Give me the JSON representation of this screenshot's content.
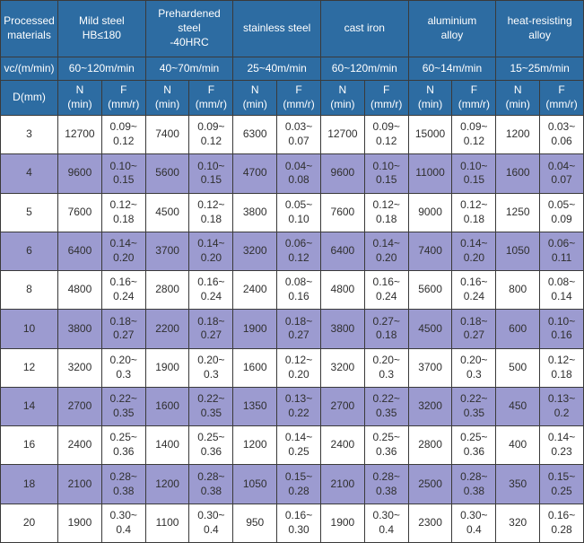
{
  "colors": {
    "header_bg": "#2d6ca2",
    "header_text": "#ffffff",
    "stripe_bg": "#9c9bd0",
    "row_bg": "#ffffff",
    "border": "#3a3a3a",
    "text": "#2f2f2f"
  },
  "table": {
    "corner_top": "Processed\nmaterials",
    "corner_speed": "vc/(m/min)",
    "corner_diameter": "D(mm)",
    "sub_n_label": "N",
    "sub_n_unit": "(min)",
    "sub_f_label": "F",
    "sub_f_unit": "(mm/r)",
    "materials": [
      {
        "name": "Mild steel\nHB≤180",
        "speed": "60~120m/min"
      },
      {
        "name": "Prehardened\nsteel\n-40HRC",
        "speed": "40~70m/min"
      },
      {
        "name": "stainless steel",
        "speed": "25~40m/min"
      },
      {
        "name": "cast iron",
        "speed": "60~120m/min"
      },
      {
        "name": "aluminium\nalloy",
        "speed": "60~14m/min"
      },
      {
        "name": "heat-resisting\nalloy",
        "speed": "15~25m/min"
      }
    ],
    "rows": [
      {
        "d": "3",
        "values": [
          [
            "12700",
            "0.09~0.12"
          ],
          [
            "7400",
            "0.09~0.12"
          ],
          [
            "6300",
            "0.03~0.07"
          ],
          [
            "12700",
            "0.09~0.12"
          ],
          [
            "15000",
            "0.09~0.12"
          ],
          [
            "1200",
            "0.03~0.06"
          ]
        ]
      },
      {
        "d": "4",
        "values": [
          [
            "9600",
            "0.10~0.15"
          ],
          [
            "5600",
            "0.10~0.15"
          ],
          [
            "4700",
            "0.04~0.08"
          ],
          [
            "9600",
            "0.10~0.15"
          ],
          [
            "11000",
            "0.10~0.15"
          ],
          [
            "1600",
            "0.04~0.07"
          ]
        ]
      },
      {
        "d": "5",
        "values": [
          [
            "7600",
            "0.12~0.18"
          ],
          [
            "4500",
            "0.12~0.18"
          ],
          [
            "3800",
            "0.05~0.10"
          ],
          [
            "7600",
            "0.12~0.18"
          ],
          [
            "9000",
            "0.12~0.18"
          ],
          [
            "1250",
            "0.05~0.09"
          ]
        ]
      },
      {
        "d": "6",
        "values": [
          [
            "6400",
            "0.14~0.20"
          ],
          [
            "3700",
            "0.14~0.20"
          ],
          [
            "3200",
            "0.06~0.12"
          ],
          [
            "6400",
            "0.14~0.20"
          ],
          [
            "7400",
            "0.14~0.20"
          ],
          [
            "1050",
            "0.06~0.11"
          ]
        ]
      },
      {
        "d": "8",
        "values": [
          [
            "4800",
            "0.16~0.24"
          ],
          [
            "2800",
            "0.16~0.24"
          ],
          [
            "2400",
            "0.08~0.16"
          ],
          [
            "4800",
            "0.16~0.24"
          ],
          [
            "5600",
            "0.16~0.24"
          ],
          [
            "800",
            "0.08~0.14"
          ]
        ]
      },
      {
        "d": "10",
        "values": [
          [
            "3800",
            "0.18~0.27"
          ],
          [
            "2200",
            "0.18~0.27"
          ],
          [
            "1900",
            "0.18~0.27"
          ],
          [
            "3800",
            "0.27~0.18"
          ],
          [
            "4500",
            "0.18~0.27"
          ],
          [
            "600",
            "0.10~0.16"
          ]
        ]
      },
      {
        "d": "12",
        "values": [
          [
            "3200",
            "0.20~0.3"
          ],
          [
            "1900",
            "0.20~0.3"
          ],
          [
            "1600",
            "0.12~0.20"
          ],
          [
            "3200",
            "0.20~0.3"
          ],
          [
            "3700",
            "0.20~0.3"
          ],
          [
            "500",
            "0.12~0.18"
          ]
        ]
      },
      {
        "d": "14",
        "values": [
          [
            "2700",
            "0.22~0.35"
          ],
          [
            "1600",
            "0.22~0.35"
          ],
          [
            "1350",
            "0.13~0.22"
          ],
          [
            "2700",
            "0.22~0.35"
          ],
          [
            "3200",
            "0.22~0.35"
          ],
          [
            "450",
            "0.13~0.2"
          ]
        ]
      },
      {
        "d": "16",
        "values": [
          [
            "2400",
            "0.25~0.36"
          ],
          [
            "1400",
            "0.25~0.36"
          ],
          [
            "1200",
            "0.14~0.25"
          ],
          [
            "2400",
            "0.25~0.36"
          ],
          [
            "2800",
            "0.25~0.36"
          ],
          [
            "400",
            "0.14~0.23"
          ]
        ]
      },
      {
        "d": "18",
        "values": [
          [
            "2100",
            "0.28~0.38"
          ],
          [
            "1200",
            "0.28~0.38"
          ],
          [
            "1050",
            "0.15~0.28"
          ],
          [
            "2100",
            "0.28~0.38"
          ],
          [
            "2500",
            "0.28~0.38"
          ],
          [
            "350",
            "0.15~0.25"
          ]
        ]
      },
      {
        "d": "20",
        "values": [
          [
            "1900",
            "0.30~0.4"
          ],
          [
            "1100",
            "0.30~0.4"
          ],
          [
            "950",
            "0.16~0.30"
          ],
          [
            "1900",
            "0.30~0.4"
          ],
          [
            "2300",
            "0.30~0.4"
          ],
          [
            "320",
            "0.16~0.28"
          ]
        ]
      }
    ]
  }
}
